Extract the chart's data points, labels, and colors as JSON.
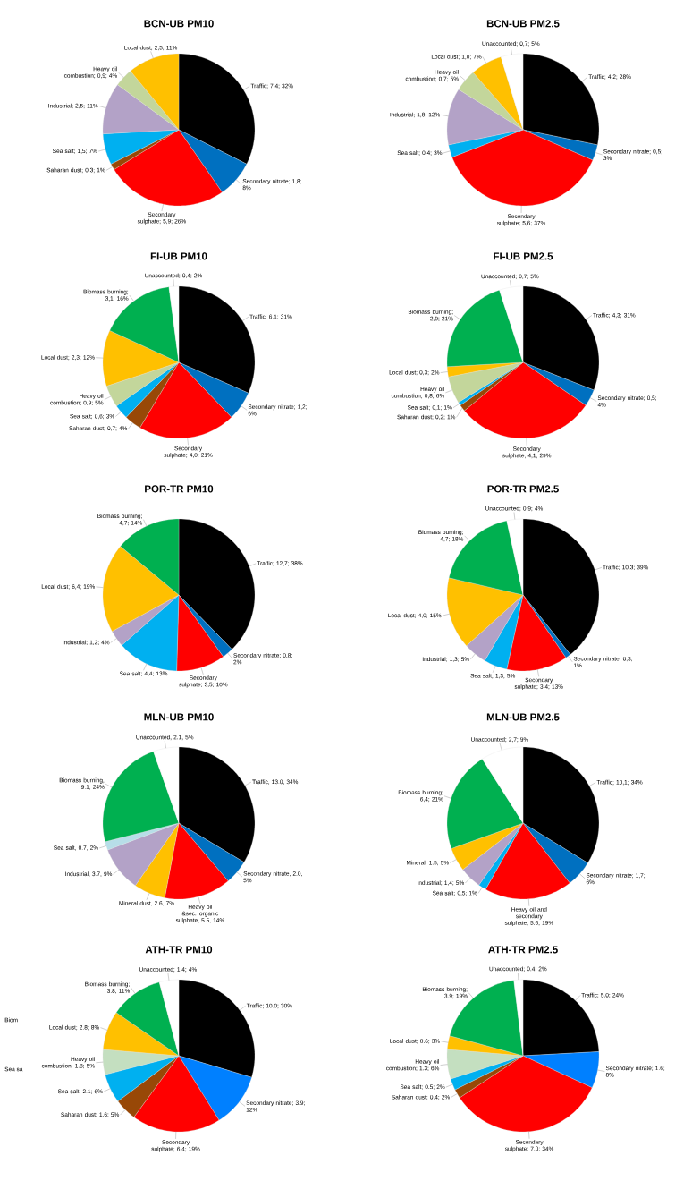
{
  "chart_data": [
    {
      "type": "pie",
      "title": "BCN-UB PM10",
      "categories": [
        "Traffic; 7,4; 32%",
        "Secondary nitrate; 1,8; 8%",
        "Secondary sulphate; 5,9; 26%",
        "Saharan dust; 0,3; 1%",
        "Sea salt; 1,5; 7%",
        "Industrial; 2,5; 11%",
        "Heavy oil combustion; 0,9; 4%",
        "Local dust; 2,5; 11%"
      ],
      "values": [
        7.4,
        1.8,
        5.9,
        0.3,
        1.5,
        2.5,
        0.9,
        2.5
      ],
      "colors": [
        "#000000",
        "#0070c0",
        "#ff0000",
        "#984807",
        "#00b0f0",
        "#b3a2c7",
        "#c3d69b",
        "#ffc000"
      ]
    },
    {
      "type": "pie",
      "title": "BCN-UB PM2.5",
      "categories": [
        "Traffic; 4,2; 28%",
        "Secondary nitrate; 0,5; 3%",
        "Secondary sulphate; 5,6; 37%",
        "Sea salt; 0,4; 3%",
        "Industrial; 1,8; 12%",
        "Heavy oil combustion; 0,7; 5%",
        "Local dust; 1,0; 7%",
        "Unaccounted; 0,7; 5%"
      ],
      "values": [
        4.2,
        0.5,
        5.6,
        0.4,
        1.8,
        0.7,
        1.0,
        0.7
      ],
      "colors": [
        "#000000",
        "#0070c0",
        "#ff0000",
        "#00b0f0",
        "#b3a2c7",
        "#c3d69b",
        "#ffc000",
        "#ffffff"
      ]
    },
    {
      "type": "pie",
      "title": "FI-UB PM10",
      "categories": [
        "Traffic; 6,1; 31%",
        "Secondary nitrate; 1,2; 6%",
        "Secondary sulphate; 4,0; 21%",
        "Saharan dust; 0,7; 4%",
        "Sea salt; 0,6; 3%",
        "Heavy oil combustion; 0,9; 5%",
        "Local dust; 2,3; 12%",
        "Biomass burning; 3,1; 16%",
        "Unaccounted; 0,4; 2%"
      ],
      "values": [
        6.1,
        1.2,
        4.0,
        0.7,
        0.6,
        0.9,
        2.3,
        3.1,
        0.4
      ],
      "colors": [
        "#000000",
        "#0070c0",
        "#ff0000",
        "#984807",
        "#00b0f0",
        "#c3d69b",
        "#ffc000",
        "#00b050",
        "#ffffff"
      ]
    },
    {
      "type": "pie",
      "title": "FI-UB PM2.5",
      "categories": [
        "Traffic; 4,3; 31%",
        "Secondary nitrate; 0,5; 4%",
        "Secondary sulphate; 4,1; 29%",
        "Saharan dust; 0,2; 1%",
        "Sea salt; 0,1; 1%",
        "Heavy oil combustion; 0,8; 6%",
        "Local dust; 0,3; 2%",
        "Biomass burning; 2,9; 21%",
        "Unaccounted; 0,7; 5%"
      ],
      "values": [
        4.3,
        0.5,
        4.1,
        0.2,
        0.1,
        0.8,
        0.3,
        2.9,
        0.7
      ],
      "colors": [
        "#000000",
        "#0070c0",
        "#ff0000",
        "#984807",
        "#00b0f0",
        "#c3d69b",
        "#ffc000",
        "#00b050",
        "#ffffff"
      ]
    },
    {
      "type": "pie",
      "title": "POR-TR PM10",
      "categories": [
        "Traffic; 12,7; 38%",
        "Secondary nitrate; 0,8; 2%",
        "Secondary sulphate; 3,5; 10%",
        "Sea salt; 4,4; 13%",
        "Industrial; 1,2; 4%",
        "Local dust; 6,4; 19%",
        "Biomass burning; 4,7; 14%"
      ],
      "values": [
        12.7,
        0.8,
        3.5,
        4.4,
        1.2,
        6.4,
        4.7
      ],
      "colors": [
        "#000000",
        "#0070c0",
        "#ff0000",
        "#00b0f0",
        "#b3a2c7",
        "#ffc000",
        "#00b050"
      ]
    },
    {
      "type": "pie",
      "title": "POR-TR PM2.5",
      "categories": [
        "Traffic; 10,3; 39%",
        "Secondary nitrate; 0,3; 1%",
        "Secondary sulphate; 3,4; 13%",
        "Sea salt; 1,3; 5%",
        "Industrial; 1,3; 5%",
        "Local dust; 4,0; 15%",
        "Biomass burning; 4,7; 18%",
        "Unaccounted; 0,9; 4%"
      ],
      "values": [
        10.3,
        0.3,
        3.4,
        1.3,
        1.3,
        4.0,
        4.7,
        0.9
      ],
      "colors": [
        "#000000",
        "#0070c0",
        "#ff0000",
        "#00b0f0",
        "#b3a2c7",
        "#ffc000",
        "#00b050",
        "#ffffff"
      ]
    },
    {
      "type": "pie",
      "title": "MLN-UB PM10",
      "categories": [
        "Traffic, 13.0, 34%",
        "Secondary nitrate, 2.0, 5%",
        "Heavy oil &sec. organic sulphate, 5.5, 14%",
        "Mineral dust, 2.6, 7%",
        "Industrial, 3.7, 9%",
        "Sea salt, 0.7, 2%",
        "Biomass burning, 9.1, 24%",
        "Unaccounted, 2.1, 5%"
      ],
      "values": [
        13.0,
        2.0,
        5.5,
        2.6,
        3.7,
        0.7,
        9.1,
        2.1
      ],
      "colors": [
        "#000000",
        "#0070c0",
        "#ff0000",
        "#ffc000",
        "#b3a2c7",
        "#b7dee8",
        "#00b050",
        "#ffffff"
      ]
    },
    {
      "type": "pie",
      "title": "MLN-UB PM2.5",
      "categories": [
        "Traffic; 10,1; 34%",
        "Secondary nitrate; 1,7; 6%",
        "Heavy oil and secondary sulphate; 5.6; 19%",
        "Sea salt; 0,5; 1%",
        "Industrial; 1,4; 5%",
        "Mineral; 1.5; 5%",
        "Biomass burning; 6,4; 21%",
        "Unaccounted; 2,7; 9%"
      ],
      "values": [
        10.1,
        1.7,
        5.6,
        0.5,
        1.4,
        1.5,
        6.4,
        2.7
      ],
      "colors": [
        "#000000",
        "#0070c0",
        "#ff0000",
        "#00b0f0",
        "#b3a2c7",
        "#ffc000",
        "#00b050",
        "#ffffff"
      ]
    },
    {
      "type": "pie",
      "title": "ATH-TR PM10",
      "categories": [
        "Traffic; 10.0; 30%",
        "Secondary nitrate; 3.9; 12%",
        "Secondary sulphate; 6.4; 19%",
        "Saharan dust; 1.6; 5%",
        "Sea salt; 2.1; 6%",
        "Heavy oil combustion; 1.8; 5%",
        "Local dust; 2.8; 8%",
        "Biomass burning; 3.8; 11%",
        "Unaccounted; 1.4; 4%"
      ],
      "values": [
        10.0,
        3.9,
        6.4,
        1.6,
        2.1,
        1.8,
        2.8,
        3.8,
        1.4
      ],
      "colors": [
        "#000000",
        "#0080ff",
        "#ff0000",
        "#984807",
        "#00b0f0",
        "#c4dfc0",
        "#ffc000",
        "#00b050",
        "#ffffff"
      ],
      "annotations": [
        "Biom",
        "Sea sa"
      ]
    },
    {
      "type": "pie",
      "title": "ATH-TR PM2.5",
      "categories": [
        "Traffic; 5.0; 24%",
        "Secondary nitrate; 1.6; 8%",
        "Secondary sulphate; 7.0; 34%",
        "Saharan dust; 0.4; 2%",
        "Sea salt; 0.5; 2%",
        "Heavy oil combustion; 1.3; 6%",
        "Local dust; 0.6; 3%",
        "Biomass burning; 3.9; 19%",
        "Unaccounted; 0.4; 2%"
      ],
      "values": [
        5.0,
        1.6,
        7.0,
        0.4,
        0.5,
        1.3,
        0.6,
        3.9,
        0.4
      ],
      "colors": [
        "#000000",
        "#0080ff",
        "#ff0000",
        "#984807",
        "#00b0f0",
        "#c4dfc0",
        "#ffc000",
        "#00b050",
        "#ffffff"
      ]
    }
  ]
}
